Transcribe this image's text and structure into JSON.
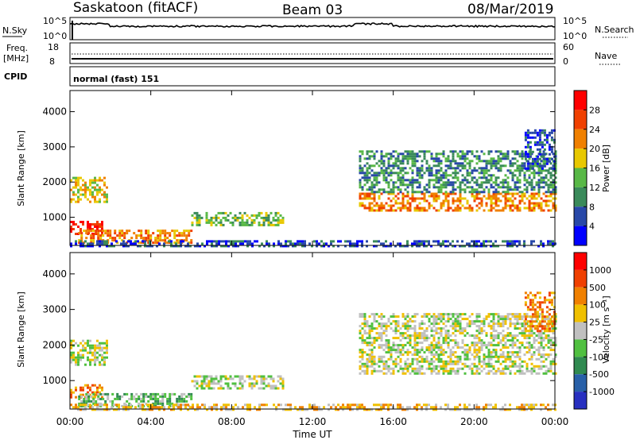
{
  "header": {
    "station": "Saskatoon (fitACF)",
    "beam": "Beam 03",
    "date": "08/Mar/2019"
  },
  "nsky_panel": {
    "left_label": "N.Sky",
    "right_label": "N.Search",
    "left_ticks": [
      "10^5",
      "10^0"
    ],
    "right_ticks": [
      "10^5",
      "10^0"
    ]
  },
  "freq_panel": {
    "left_label_line1": "Freq.",
    "left_label_line2": "[MHz]",
    "right_label": "Nave",
    "left_ticks": [
      "18",
      "8"
    ],
    "right_ticks": [
      "60",
      "0"
    ]
  },
  "cpid": {
    "label": "CPID",
    "value": "normal (fast) 151"
  },
  "chart_data": [
    {
      "type": "heatmap",
      "name": "power",
      "ylabel": "Slant Range [km]",
      "ylim": [
        200,
        4600
      ],
      "yticks": [
        1000,
        2000,
        3000,
        4000
      ],
      "colorbar_label": "Power [dB]",
      "colorbar_ticks": [
        "4",
        "8",
        "12",
        "16",
        "20",
        "24",
        "28"
      ],
      "colors": [
        "#0000ff",
        "#2848a8",
        "#3a8a5a",
        "#58b846",
        "#e8c800",
        "#f08000",
        "#f04000",
        "#ff0000"
      ],
      "regions": [
        {
          "t": [
            0.0,
            1.8
          ],
          "r": [
            1450,
            2150
          ],
          "level": 4
        },
        {
          "t": [
            0.0,
            1.6
          ],
          "r": [
            550,
            900
          ],
          "level": 7
        },
        {
          "t": [
            0.4,
            6.0
          ],
          "r": [
            300,
            650
          ],
          "level": 5
        },
        {
          "t": [
            6.0,
            10.5
          ],
          "r": [
            800,
            1150
          ],
          "level": 3
        },
        {
          "t": [
            0.0,
            24.0
          ],
          "r": [
            200,
            350
          ],
          "level": 1
        },
        {
          "t": [
            14.3,
            24.0
          ],
          "r": [
            1200,
            1700
          ],
          "level": 5
        },
        {
          "t": [
            14.3,
            24.0
          ],
          "r": [
            1700,
            2900
          ],
          "level": 2
        },
        {
          "t": [
            22.5,
            24.0
          ],
          "r": [
            2400,
            3500
          ],
          "level": 1
        }
      ]
    },
    {
      "type": "heatmap",
      "name": "velocity",
      "ylabel": "Slant Range [km]",
      "ylim": [
        200,
        4600
      ],
      "yticks": [
        1000,
        2000,
        3000,
        4000
      ],
      "colorbar_label": "Velocity [m s⁻¹]",
      "colorbar_ticks": [
        "1000",
        "500",
        "100",
        "25",
        "-25",
        "-100",
        "-500",
        "-1000"
      ],
      "colors": [
        "#2830c0",
        "#2860a8",
        "#308a50",
        "#50c040",
        "#c0c0c0",
        "#f0c000",
        "#f08000",
        "#f04000",
        "#ff0000"
      ],
      "regions": [
        {
          "t": [
            0.0,
            1.8
          ],
          "r": [
            1450,
            2150
          ],
          "level": 4
        },
        {
          "t": [
            0.0,
            1.6
          ],
          "r": [
            550,
            900
          ],
          "level": 6
        },
        {
          "t": [
            0.4,
            6.0
          ],
          "r": [
            300,
            650
          ],
          "level": 3
        },
        {
          "t": [
            6.0,
            10.5
          ],
          "r": [
            800,
            1150
          ],
          "level": 4
        },
        {
          "t": [
            0.0,
            24.0
          ],
          "r": [
            200,
            350
          ],
          "level": 5
        },
        {
          "t": [
            14.3,
            24.0
          ],
          "r": [
            1200,
            1700
          ],
          "level": 4
        },
        {
          "t": [
            14.3,
            24.0
          ],
          "r": [
            1700,
            2900
          ],
          "level": 4
        },
        {
          "t": [
            22.5,
            24.0
          ],
          "r": [
            2400,
            3500
          ],
          "level": 6
        }
      ]
    }
  ],
  "x_axis": {
    "label": "Time UT",
    "ticks": [
      "00:00",
      "04:00",
      "08:00",
      "12:00",
      "16:00",
      "20:00",
      "00:00"
    ]
  }
}
